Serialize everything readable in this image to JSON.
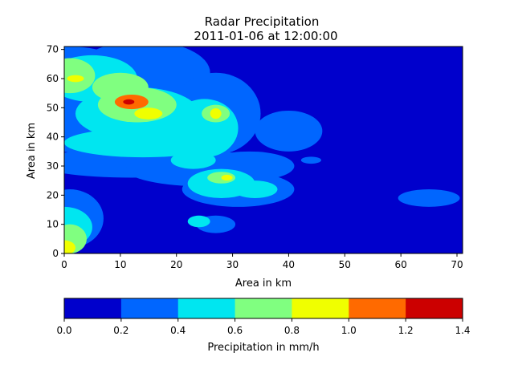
{
  "chart_data": {
    "type": "heatmap",
    "title": "Radar Precipitation",
    "subtitle": "2011-01-06 at 12:00:00",
    "xlabel": "Area in km",
    "ylabel": "Area in km",
    "xlim": [
      0,
      71
    ],
    "ylim": [
      0,
      71
    ],
    "xticks": [
      0,
      10,
      20,
      30,
      40,
      50,
      60,
      70
    ],
    "yticks": [
      0,
      10,
      20,
      30,
      40,
      50,
      60,
      70
    ],
    "colorbar": {
      "label": "Precipitation in mm/h",
      "levels": [
        0.0,
        0.2,
        0.4,
        0.6,
        0.8,
        1.0,
        1.2,
        1.4
      ],
      "tick_labels": [
        "0.0",
        "0.2",
        "0.4",
        "0.6",
        "0.8",
        "1.0",
        "1.2",
        "1.4"
      ],
      "colors": [
        "#0000cc",
        "#0066ff",
        "#00e6f0",
        "#80ff80",
        "#f0ff00",
        "#ff6a00",
        "#cc0000"
      ]
    },
    "precip_cells": [
      {
        "x": 1,
        "y": 59,
        "rx": 12,
        "ry": 12,
        "v": 0.3
      },
      {
        "x": 5,
        "y": 48,
        "rx": 14,
        "ry": 14,
        "v": 0.3
      },
      {
        "x": 14,
        "y": 62,
        "rx": 12,
        "ry": 11,
        "v": 0.3
      },
      {
        "x": 18,
        "y": 47,
        "rx": 10,
        "ry": 14,
        "v": 0.3
      },
      {
        "x": 27,
        "y": 48,
        "rx": 8,
        "ry": 14,
        "v": 0.3
      },
      {
        "x": 40,
        "y": 42,
        "rx": 6,
        "ry": 7,
        "v": 0.3
      },
      {
        "x": 12,
        "y": 31,
        "rx": 17,
        "ry": 5,
        "v": 0.3
      },
      {
        "x": 25,
        "y": 29,
        "rx": 14,
        "ry": 6,
        "v": 0.3
      },
      {
        "x": 31,
        "y": 22,
        "rx": 10,
        "ry": 6,
        "v": 0.3
      },
      {
        "x": 33,
        "y": 30,
        "rx": 8,
        "ry": 5,
        "v": 0.3
      },
      {
        "x": 65,
        "y": 19,
        "rx": 5.5,
        "ry": 3,
        "v": 0.3
      },
      {
        "x": 44,
        "y": 32,
        "rx": 1.8,
        "ry": 1.2,
        "v": 0.3
      },
      {
        "x": 1,
        "y": 12,
        "rx": 6,
        "ry": 10,
        "v": 0.3
      },
      {
        "x": 27,
        "y": 10,
        "rx": 3.5,
        "ry": 3,
        "v": 0.3
      },
      {
        "x": 5,
        "y": 60,
        "rx": 8,
        "ry": 8,
        "v": 0.5
      },
      {
        "x": 13,
        "y": 48,
        "rx": 11,
        "ry": 9,
        "v": 0.5
      },
      {
        "x": 25,
        "y": 43,
        "rx": 6,
        "ry": 10,
        "v": 0.5
      },
      {
        "x": 14,
        "y": 38,
        "rx": 14,
        "ry": 5,
        "v": 0.5
      },
      {
        "x": 28,
        "y": 24,
        "rx": 6,
        "ry": 5,
        "v": 0.5
      },
      {
        "x": 34,
        "y": 22,
        "rx": 4,
        "ry": 3,
        "v": 0.5
      },
      {
        "x": 23,
        "y": 32,
        "rx": 4,
        "ry": 3,
        "v": 0.5
      },
      {
        "x": 24,
        "y": 11,
        "rx": 2,
        "ry": 2,
        "v": 0.5
      },
      {
        "x": 0,
        "y": 9,
        "rx": 5,
        "ry": 7,
        "v": 0.5
      },
      {
        "x": 1,
        "y": 61,
        "rx": 4.5,
        "ry": 6,
        "v": 0.7
      },
      {
        "x": 10,
        "y": 57,
        "rx": 5,
        "ry": 5,
        "v": 0.7
      },
      {
        "x": 13,
        "y": 51,
        "rx": 7,
        "ry": 6,
        "v": 0.7
      },
      {
        "x": 27,
        "y": 48,
        "rx": 2.5,
        "ry": 3,
        "v": 0.7
      },
      {
        "x": 28,
        "y": 26,
        "rx": 2.5,
        "ry": 2,
        "v": 0.7
      },
      {
        "x": 1,
        "y": 5,
        "rx": 3,
        "ry": 5,
        "v": 0.7
      },
      {
        "x": 2,
        "y": 60,
        "rx": 1.5,
        "ry": 1.2,
        "v": 0.9
      },
      {
        "x": 15,
        "y": 48,
        "rx": 2.5,
        "ry": 2,
        "v": 0.9
      },
      {
        "x": 27,
        "y": 48,
        "rx": 1,
        "ry": 1.8,
        "v": 0.9
      },
      {
        "x": 29,
        "y": 26,
        "rx": 1,
        "ry": 1,
        "v": 0.9
      },
      {
        "x": 0,
        "y": 2,
        "rx": 2,
        "ry": 2.5,
        "v": 0.9
      },
      {
        "x": 12,
        "y": 52,
        "rx": 3,
        "ry": 2.5,
        "v": 1.1
      },
      {
        "x": 11.5,
        "y": 52,
        "rx": 1,
        "ry": 0.9,
        "v": 1.3
      }
    ]
  }
}
